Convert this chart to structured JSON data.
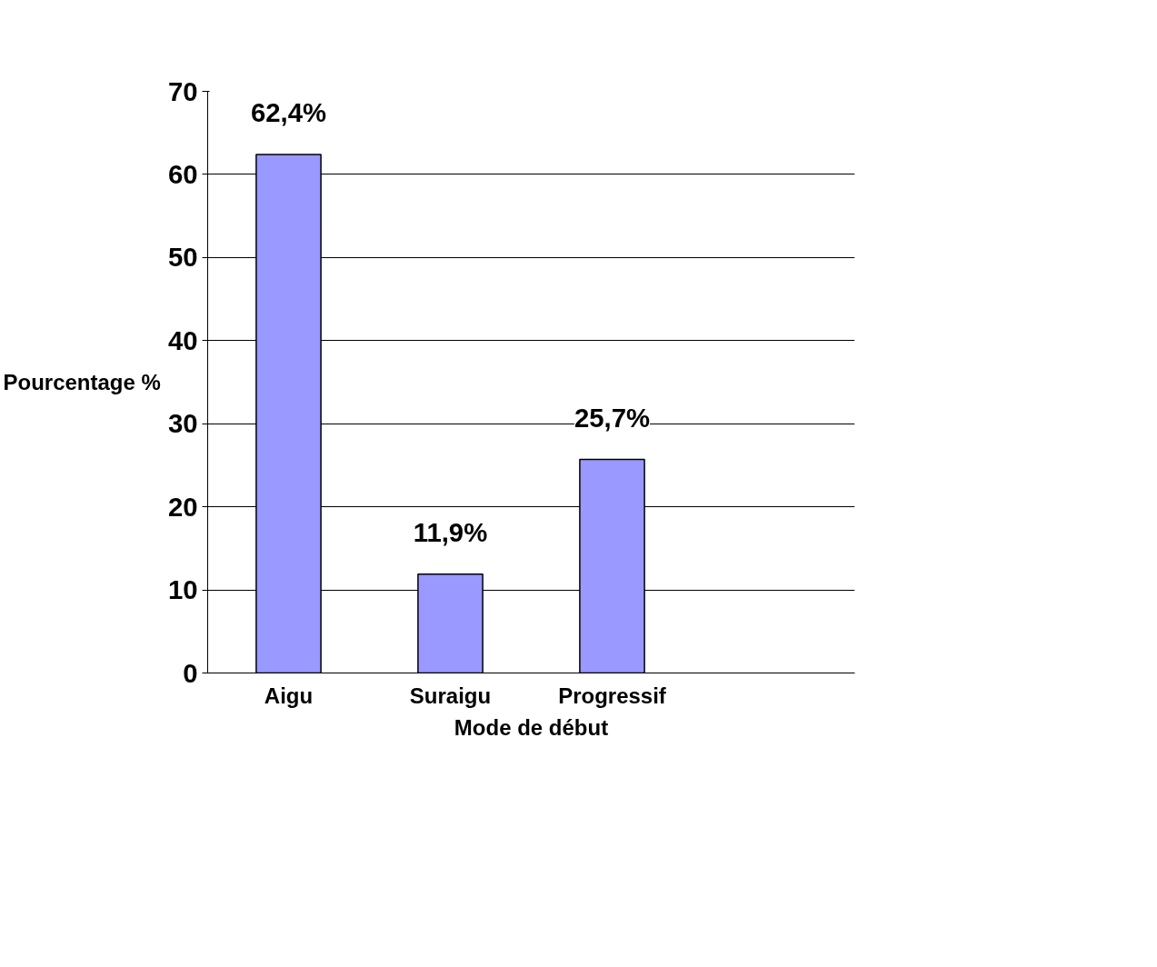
{
  "chart_data": {
    "type": "bar",
    "xlabel": "Mode de début",
    "ylabel": "Pourcentage %",
    "categories": [
      "Aigu",
      "Suraigu",
      "Progressif",
      null
    ],
    "values": [
      62.4,
      11.9,
      25.7,
      null
    ],
    "value_labels": [
      "62,4%",
      "11,9%",
      "25,7%",
      null
    ],
    "color": "#9999ff",
    "ylim": [
      0,
      70
    ],
    "yticks": [
      0,
      10,
      20,
      30,
      40,
      50,
      60,
      70
    ],
    "grid": "y"
  }
}
